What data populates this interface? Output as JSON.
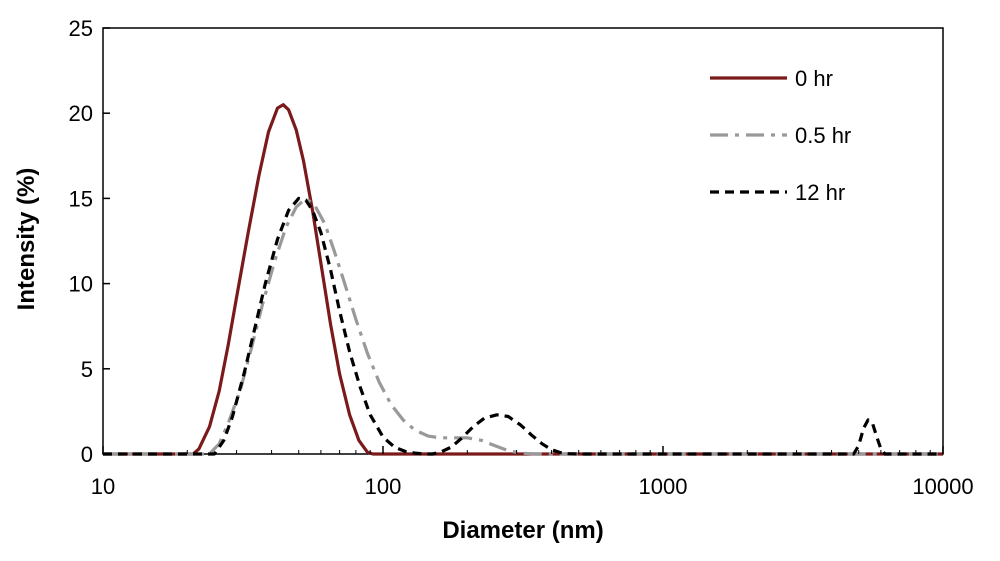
{
  "chart_data": {
    "type": "line",
    "title": "",
    "xlabel": "Diameter (nm)",
    "ylabel": "Intensity (%)",
    "xscale": "log",
    "xlim": [
      10,
      10000
    ],
    "ylim": [
      0,
      25
    ],
    "xticks": [
      10,
      100,
      1000,
      10000
    ],
    "xtick_labels": [
      "10",
      "100",
      "1000",
      "10000"
    ],
    "yticks": [
      0,
      5,
      10,
      15,
      20,
      25
    ],
    "ytick_labels": [
      "0",
      "5",
      "10",
      "15",
      "20",
      "25"
    ],
    "grid": false,
    "legend_position": "top-right",
    "series": [
      {
        "name": "0 hr",
        "color": "#7b1a1a",
        "style": "solid",
        "x": [
          10,
          21,
          22,
          24,
          26,
          28,
          30,
          33,
          36,
          39,
          42,
          44,
          46,
          49,
          52,
          56,
          60,
          65,
          70,
          76,
          82,
          88,
          92,
          10000
        ],
        "y": [
          0,
          0,
          0.3,
          1.6,
          3.7,
          6.4,
          9.2,
          13.0,
          16.3,
          18.9,
          20.3,
          20.5,
          20.2,
          19.0,
          17.2,
          14.3,
          11.2,
          7.6,
          4.7,
          2.3,
          0.8,
          0.1,
          0,
          0
        ]
      },
      {
        "name": "0.5 hr",
        "color": "#999999",
        "style": "dashdot",
        "x": [
          10,
          24,
          26,
          28,
          31,
          34,
          37,
          41,
          45,
          49,
          53,
          57,
          62,
          67,
          73,
          80,
          88,
          97,
          107,
          118,
          130,
          145,
          160,
          180,
          200,
          225,
          250,
          280,
          310,
          350,
          10000
        ],
        "y": [
          0,
          0,
          0.6,
          1.8,
          3.8,
          6.3,
          8.7,
          11.3,
          13.3,
          14.5,
          15.0,
          14.6,
          13.5,
          11.9,
          10.0,
          7.9,
          5.9,
          4.2,
          2.9,
          2.0,
          1.4,
          1.05,
          0.95,
          0.95,
          0.95,
          0.8,
          0.5,
          0.2,
          0.05,
          0,
          0
        ]
      },
      {
        "name": "12 hr",
        "color": "#000000",
        "style": "dashed",
        "x": [
          10,
          25,
          27,
          29,
          32,
          35,
          38,
          42,
          46,
          50,
          53,
          56,
          60,
          65,
          70,
          76,
          83,
          90,
          100,
          110,
          120,
          130,
          140,
          150,
          160,
          175,
          190,
          210,
          230,
          255,
          280,
          310,
          340,
          370,
          400,
          430,
          460,
          500,
          4800,
          5000,
          5200,
          5400,
          5600,
          5800,
          6000,
          6200,
          10000
        ],
        "y": [
          0,
          0,
          0.8,
          2.2,
          4.8,
          7.5,
          10.0,
          12.6,
          14.3,
          15.0,
          14.9,
          14.3,
          13.0,
          10.8,
          8.4,
          6.0,
          3.9,
          2.3,
          1.0,
          0.4,
          0.15,
          0.05,
          0,
          0,
          0.1,
          0.4,
          0.9,
          1.6,
          2.1,
          2.3,
          2.2,
          1.7,
          1.1,
          0.6,
          0.25,
          0.08,
          0.02,
          0,
          0,
          0.5,
          1.5,
          2.0,
          1.8,
          1.0,
          0.3,
          0,
          0
        ]
      }
    ]
  }
}
